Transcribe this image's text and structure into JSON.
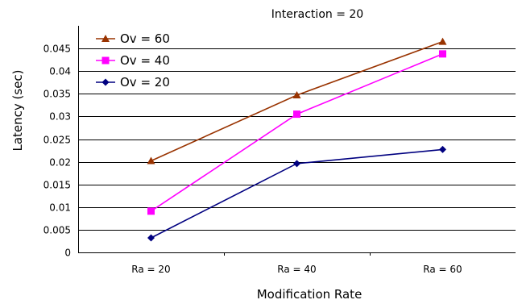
{
  "chart_data": {
    "type": "line",
    "title": "Interaction = 20",
    "xlabel": "Modification Rate",
    "ylabel": "Latency (sec)",
    "categories": [
      "Ra = 20",
      "Ra = 40",
      "Ra = 60"
    ],
    "ylim": [
      0,
      0.05
    ],
    "yticks": [
      0,
      0.005,
      0.01,
      0.015,
      0.02,
      0.025,
      0.03,
      0.035,
      0.04,
      0.045
    ],
    "ytick_labels": [
      "0",
      "0.005",
      "0.01",
      "0.015",
      "0.02",
      "0.025",
      "0.03",
      "0.035",
      "0.04",
      "0.045"
    ],
    "grid": true,
    "legend_position": "top-left",
    "series": [
      {
        "name": "Ov = 60",
        "values": [
          0.0202,
          0.0347,
          0.0465
        ],
        "color": "#993300",
        "marker": "triangle"
      },
      {
        "name": "Ov = 40",
        "values": [
          0.0091,
          0.0305,
          0.0438
        ],
        "color": "#ff00ff",
        "marker": "square"
      },
      {
        "name": "Ov = 20",
        "values": [
          0.0032,
          0.0196,
          0.0227
        ],
        "color": "#000080",
        "marker": "diamond"
      }
    ]
  }
}
